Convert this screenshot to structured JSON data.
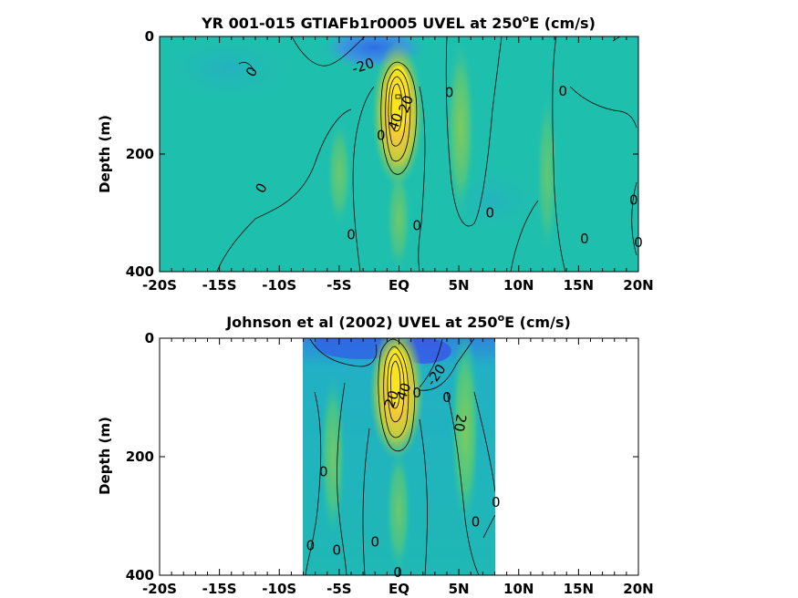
{
  "colors": {
    "background": "#ffffff",
    "field_base": "#1fbfae",
    "field_negative": "#2f7fe0",
    "field_positive_weak": "#6fca66",
    "field_positive_mid": "#c8cf3c",
    "field_positive_strong": "#fbe51f",
    "contour_line": "#000000"
  },
  "chart_data": [
    {
      "type": "heatmap",
      "title_prefix": "YR 001-015 GTIAFb1r0005 UVEL at 250",
      "title_superscript": "o",
      "title_suffix": "E (cm/s)",
      "ylabel": "Depth (m)",
      "xlabel": "",
      "x_ticks": [
        {
          "value": -20,
          "label": "-20S"
        },
        {
          "value": -15,
          "label": "-15S"
        },
        {
          "value": -10,
          "label": "-10S"
        },
        {
          "value": -5,
          "label": "-5S"
        },
        {
          "value": 0,
          "label": "EQ"
        },
        {
          "value": 5,
          "label": "5N"
        },
        {
          "value": 10,
          "label": "10N"
        },
        {
          "value": 15,
          "label": "15N"
        },
        {
          "value": 20,
          "label": "20N"
        }
      ],
      "y_ticks": [
        {
          "value": 0,
          "label": "0"
        },
        {
          "value": 200,
          "label": "200"
        },
        {
          "value": 400,
          "label": "400"
        }
      ],
      "xlim": [
        -20,
        20
      ],
      "ylim": [
        0,
        400
      ],
      "y_reversed": true,
      "data_extent_x": [
        -20,
        20
      ],
      "colormap": "parula",
      "features": [
        {
          "kind": "eastward_core",
          "x": 0,
          "depth": 100,
          "value": 80
        },
        {
          "kind": "westward_surface",
          "x": -2,
          "depth": 10,
          "value": -20
        },
        {
          "kind": "eastward_band",
          "x": 5,
          "depth": 100,
          "value": 15
        }
      ],
      "contour_labels": [
        {
          "text": "0",
          "x": -12.3,
          "depth": 60,
          "angle": -60
        },
        {
          "text": "-20",
          "x": -3,
          "depth": 50,
          "angle": -18
        },
        {
          "text": "0",
          "x": 4.2,
          "depth": 95,
          "angle": 0
        },
        {
          "text": "0",
          "x": 13.7,
          "depth": 93,
          "angle": 0
        },
        {
          "text": "0",
          "x": -11.5,
          "depth": 258,
          "angle": -60
        },
        {
          "text": "0",
          "x": 1.5,
          "depth": 322,
          "angle": 0
        },
        {
          "text": "0",
          "x": 7.6,
          "depth": 300,
          "angle": 0
        },
        {
          "text": "0",
          "x": -4,
          "depth": 337,
          "angle": 0
        },
        {
          "text": "0",
          "x": 15.5,
          "depth": 344,
          "angle": 0
        },
        {
          "text": "0",
          "x": 19.6,
          "depth": 278,
          "angle": 0
        },
        {
          "text": "0",
          "x": 20,
          "depth": 350,
          "angle": 0
        },
        {
          "text": "0",
          "x": -1.5,
          "depth": 168,
          "angle": 0
        },
        {
          "text": "40",
          "x": -0.3,
          "depth": 145,
          "angle": -70
        },
        {
          "text": "20",
          "x": 0.6,
          "depth": 115,
          "angle": -70
        }
      ]
    },
    {
      "type": "heatmap",
      "title_prefix": "Johnson et al (2002) UVEL at 250",
      "title_superscript": "o",
      "title_suffix": "E (cm/s)",
      "ylabel": "Depth (m)",
      "xlabel": "",
      "x_ticks": [
        {
          "value": -20,
          "label": "-20S"
        },
        {
          "value": -15,
          "label": "-15S"
        },
        {
          "value": -10,
          "label": "-10S"
        },
        {
          "value": -5,
          "label": "-5S"
        },
        {
          "value": 0,
          "label": "EQ"
        },
        {
          "value": 5,
          "label": "5N"
        },
        {
          "value": 10,
          "label": "10N"
        },
        {
          "value": 15,
          "label": "15N"
        },
        {
          "value": 20,
          "label": "20N"
        }
      ],
      "y_ticks": [
        {
          "value": 0,
          "label": "0"
        },
        {
          "value": 200,
          "label": "200"
        },
        {
          "value": 400,
          "label": "400"
        }
      ],
      "xlim": [
        -20,
        20
      ],
      "ylim": [
        0,
        400
      ],
      "y_reversed": true,
      "data_extent_x": [
        -8,
        8
      ],
      "colormap": "parula",
      "features": [
        {
          "kind": "eastward_core",
          "x": 0,
          "depth": 70,
          "value": 80
        },
        {
          "kind": "westward_surface",
          "x": 1,
          "depth": 10,
          "value": -20
        },
        {
          "kind": "eastward_band",
          "x": 5.5,
          "depth": 120,
          "value": 20
        }
      ],
      "contour_labels": [
        {
          "text": "-20",
          "x": 3.1,
          "depth": 62,
          "angle": -55
        },
        {
          "text": "20",
          "x": -0.6,
          "depth": 103,
          "angle": -70
        },
        {
          "text": "40",
          "x": 0.4,
          "depth": 90,
          "angle": -70
        },
        {
          "text": "0",
          "x": 1.5,
          "depth": 92,
          "angle": 0
        },
        {
          "text": "0",
          "x": 4.0,
          "depth": 100,
          "angle": 0
        },
        {
          "text": "20",
          "x": 5.1,
          "depth": 143,
          "angle": 100
        },
        {
          "text": "0",
          "x": -6.3,
          "depth": 225,
          "angle": 0
        },
        {
          "text": "0",
          "x": 8.1,
          "depth": 277,
          "angle": 0
        },
        {
          "text": "0",
          "x": 6.4,
          "depth": 310,
          "angle": 0
        },
        {
          "text": "0",
          "x": -7.4,
          "depth": 350,
          "angle": 0
        },
        {
          "text": "0",
          "x": -5.2,
          "depth": 358,
          "angle": 0
        },
        {
          "text": "0",
          "x": -2.0,
          "depth": 344,
          "angle": 0
        },
        {
          "text": "0",
          "x": -0.1,
          "depth": 395,
          "angle": 0
        }
      ]
    }
  ]
}
